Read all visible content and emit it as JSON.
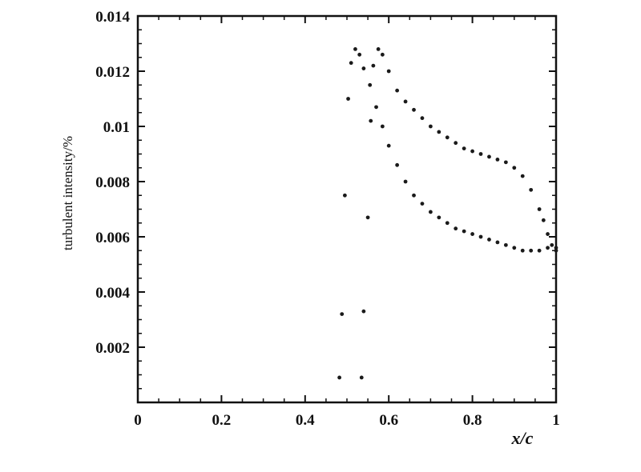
{
  "chart_data": {
    "type": "scatter",
    "title": "",
    "xlabel": "x/c",
    "ylabel": "turbulent intensity/%",
    "xlim": [
      0,
      1
    ],
    "ylim": [
      0,
      0.014
    ],
    "grid": false,
    "legend": "none",
    "x_ticks": [
      "0",
      "0.2",
      "0.4",
      "0.6",
      "0.8",
      "1"
    ],
    "y_ticks": [
      "0.002",
      "0.004",
      "0.006",
      "0.008",
      "0.01",
      "0.012",
      "0.014"
    ],
    "marker_color": "#1a1a1a",
    "series": [
      {
        "points": [
          [
            0.482,
            0.0009
          ],
          [
            0.488,
            0.0032
          ],
          [
            0.495,
            0.0075
          ],
          [
            0.503,
            0.011
          ],
          [
            0.51,
            0.0123
          ],
          [
            0.52,
            0.0128
          ],
          [
            0.53,
            0.0126
          ],
          [
            0.54,
            0.0121
          ],
          [
            0.555,
            0.0115
          ],
          [
            0.57,
            0.0107
          ],
          [
            0.585,
            0.01
          ],
          [
            0.6,
            0.0093
          ],
          [
            0.62,
            0.0086
          ],
          [
            0.64,
            0.008
          ],
          [
            0.66,
            0.0075
          ],
          [
            0.68,
            0.0072
          ],
          [
            0.7,
            0.0069
          ],
          [
            0.72,
            0.0067
          ],
          [
            0.74,
            0.0065
          ],
          [
            0.76,
            0.0063
          ],
          [
            0.78,
            0.0062
          ],
          [
            0.8,
            0.0061
          ],
          [
            0.82,
            0.006
          ],
          [
            0.84,
            0.0059
          ],
          [
            0.86,
            0.0058
          ],
          [
            0.88,
            0.0057
          ],
          [
            0.9,
            0.0056
          ],
          [
            0.92,
            0.0055
          ],
          [
            0.94,
            0.0055
          ],
          [
            0.96,
            0.0055
          ],
          [
            0.98,
            0.0056
          ],
          [
            1.0,
            0.0056
          ]
        ]
      },
      {
        "points": [
          [
            0.535,
            0.0009
          ],
          [
            0.54,
            0.0033
          ],
          [
            0.55,
            0.0067
          ],
          [
            0.557,
            0.0102
          ],
          [
            0.563,
            0.0122
          ],
          [
            0.575,
            0.0128
          ],
          [
            0.585,
            0.0126
          ],
          [
            0.6,
            0.012
          ],
          [
            0.62,
            0.0113
          ],
          [
            0.64,
            0.0109
          ],
          [
            0.66,
            0.0106
          ],
          [
            0.68,
            0.0103
          ],
          [
            0.7,
            0.01
          ],
          [
            0.72,
            0.0098
          ],
          [
            0.74,
            0.0096
          ],
          [
            0.76,
            0.0094
          ],
          [
            0.78,
            0.0092
          ],
          [
            0.8,
            0.0091
          ],
          [
            0.82,
            0.009
          ],
          [
            0.84,
            0.0089
          ],
          [
            0.86,
            0.0088
          ],
          [
            0.88,
            0.0087
          ],
          [
            0.9,
            0.0085
          ],
          [
            0.92,
            0.0082
          ],
          [
            0.94,
            0.0077
          ],
          [
            0.96,
            0.007
          ],
          [
            0.97,
            0.0066
          ],
          [
            0.98,
            0.0061
          ],
          [
            0.99,
            0.0057
          ],
          [
            1.0,
            0.0055
          ]
        ]
      }
    ]
  }
}
